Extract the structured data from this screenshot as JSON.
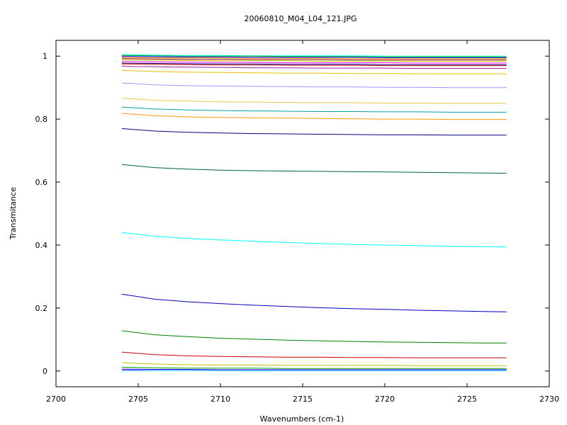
{
  "chart_data": {
    "type": "line",
    "title": "20060810_M04_L04_121.JPG",
    "xlabel": "Wavenumbers (cm-1)",
    "ylabel": "Transmitance",
    "xlim": [
      2700,
      2730
    ],
    "ylim": [
      -0.05,
      1.05
    ],
    "xticks": [
      {
        "value": 2700,
        "label": "2700"
      },
      {
        "value": 2705,
        "label": "2705"
      },
      {
        "value": 2710,
        "label": "2710"
      },
      {
        "value": 2715,
        "label": "2715"
      },
      {
        "value": 2720,
        "label": "2720"
      },
      {
        "value": 2725,
        "label": "2725"
      },
      {
        "value": 2730,
        "label": "2730"
      }
    ],
    "yticks": [
      {
        "value": 0,
        "label": "0"
      },
      {
        "value": 0.2,
        "label": "0.2"
      },
      {
        "value": 0.4,
        "label": "0.4"
      },
      {
        "value": 0.6,
        "label": "0.6"
      },
      {
        "value": 0.8,
        "label": "0.8"
      },
      {
        "value": 1,
        "label": "1"
      }
    ],
    "grid": false,
    "legend": "none",
    "x": [
      2704.0,
      2706.0,
      2708.0,
      2710.0,
      2712.0,
      2714.0,
      2716.0,
      2718.0,
      2720.0,
      2722.0,
      2724.0,
      2726.0,
      2727.4
    ],
    "series": [
      {
        "color": "#00ffff",
        "values": [
          1.005,
          1.003,
          1.002,
          1.002,
          1.001,
          1.001,
          1.001,
          1.001,
          1.0,
          1.0,
          1.0,
          1.0,
          1.0
        ]
      },
      {
        "color": "#00a000",
        "values": [
          1.002,
          1.001,
          1.0,
          1.0,
          1.0,
          0.999,
          0.999,
          0.999,
          0.998,
          0.998,
          0.998,
          0.998,
          0.998
        ]
      },
      {
        "color": "#0000ff",
        "values": [
          0.999,
          0.998,
          0.997,
          0.997,
          0.996,
          0.996,
          0.996,
          0.996,
          0.995,
          0.995,
          0.995,
          0.995,
          0.995
        ]
      },
      {
        "color": "#ff8c00",
        "values": [
          0.996,
          0.995,
          0.994,
          0.994,
          0.993,
          0.993,
          0.993,
          0.992,
          0.992,
          0.992,
          0.992,
          0.992,
          0.992
        ]
      },
      {
        "color": "#8b0000",
        "values": [
          0.992,
          0.991,
          0.99,
          0.99,
          0.989,
          0.989,
          0.989,
          0.988,
          0.988,
          0.988,
          0.988,
          0.988,
          0.988
        ]
      },
      {
        "color": "#c0c000",
        "values": [
          0.988,
          0.987,
          0.986,
          0.985,
          0.985,
          0.985,
          0.984,
          0.984,
          0.984,
          0.984,
          0.984,
          0.984,
          0.984
        ]
      },
      {
        "color": "#ff00ff",
        "values": [
          0.983,
          0.982,
          0.981,
          0.98,
          0.98,
          0.979,
          0.979,
          0.979,
          0.979,
          0.978,
          0.978,
          0.978,
          0.978
        ]
      },
      {
        "color": "#00008b",
        "values": [
          0.978,
          0.977,
          0.976,
          0.975,
          0.975,
          0.974,
          0.974,
          0.974,
          0.973,
          0.973,
          0.973,
          0.973,
          0.973
        ]
      },
      {
        "color": "#cc0000",
        "values": [
          0.975,
          0.974,
          0.973,
          0.972,
          0.972,
          0.971,
          0.971,
          0.971,
          0.97,
          0.97,
          0.97,
          0.97,
          0.97
        ]
      },
      {
        "color": "#a020a0",
        "values": [
          0.968,
          0.966,
          0.965,
          0.964,
          0.963,
          0.963,
          0.962,
          0.962,
          0.962,
          0.961,
          0.961,
          0.961,
          0.961
        ]
      },
      {
        "color": "#e6c000",
        "values": [
          0.955,
          0.951,
          0.949,
          0.948,
          0.947,
          0.946,
          0.946,
          0.945,
          0.945,
          0.944,
          0.944,
          0.944,
          0.944
        ]
      },
      {
        "color": "#9999ff",
        "values": [
          0.915,
          0.909,
          0.906,
          0.905,
          0.904,
          0.903,
          0.902,
          0.902,
          0.901,
          0.901,
          0.9,
          0.9,
          0.9
        ]
      },
      {
        "color": "#e6c84a",
        "values": [
          0.866,
          0.86,
          0.857,
          0.855,
          0.854,
          0.853,
          0.852,
          0.852,
          0.851,
          0.851,
          0.85,
          0.85,
          0.85
        ]
      },
      {
        "color": "#00a0a0",
        "values": [
          0.838,
          0.832,
          0.829,
          0.827,
          0.826,
          0.825,
          0.824,
          0.824,
          0.823,
          0.823,
          0.822,
          0.822,
          0.822
        ]
      },
      {
        "color": "#ff9900",
        "values": [
          0.818,
          0.811,
          0.807,
          0.805,
          0.804,
          0.803,
          0.802,
          0.801,
          0.8,
          0.8,
          0.799,
          0.799,
          0.799
        ]
      },
      {
        "color": "#000080",
        "values": [
          0.77,
          0.762,
          0.758,
          0.756,
          0.754,
          0.753,
          0.752,
          0.751,
          0.75,
          0.75,
          0.749,
          0.749,
          0.749
        ]
      },
      {
        "color": "#006040",
        "values": [
          0.656,
          0.646,
          0.641,
          0.638,
          0.636,
          0.635,
          0.634,
          0.633,
          0.632,
          0.631,
          0.63,
          0.629,
          0.628
        ]
      },
      {
        "color": "#00ffff",
        "values": [
          0.44,
          0.428,
          0.421,
          0.416,
          0.412,
          0.408,
          0.405,
          0.402,
          0.4,
          0.398,
          0.396,
          0.395,
          0.394
        ]
      },
      {
        "color": "#0000c0",
        "values": [
          0.244,
          0.228,
          0.22,
          0.214,
          0.209,
          0.205,
          0.201,
          0.198,
          0.196,
          0.193,
          0.191,
          0.189,
          0.188
        ]
      },
      {
        "color": "#008000",
        "values": [
          0.128,
          0.115,
          0.109,
          0.104,
          0.101,
          0.098,
          0.096,
          0.094,
          0.092,
          0.091,
          0.09,
          0.089,
          0.089
        ]
      },
      {
        "color": "#cc0000",
        "values": [
          0.06,
          0.052,
          0.048,
          0.046,
          0.045,
          0.044,
          0.044,
          0.043,
          0.043,
          0.042,
          0.042,
          0.042,
          0.042
        ]
      },
      {
        "color": "#c0c000",
        "values": [
          0.026,
          0.022,
          0.02,
          0.019,
          0.019,
          0.018,
          0.018,
          0.018,
          0.018,
          0.017,
          0.017,
          0.017,
          0.017
        ]
      },
      {
        "color": "#00a000",
        "values": [
          0.012,
          0.01,
          0.009,
          0.009,
          0.009,
          0.008,
          0.008,
          0.008,
          0.008,
          0.008,
          0.008,
          0.008,
          0.008
        ]
      },
      {
        "color": "#0000ff",
        "values": [
          0.006,
          0.005,
          0.005,
          0.004,
          0.004,
          0.004,
          0.004,
          0.004,
          0.004,
          0.004,
          0.004,
          0.004,
          0.004
        ]
      },
      {
        "color": "#ff00ff",
        "values": [
          0.003,
          0.002,
          0.002,
          0.002,
          0.002,
          0.002,
          0.002,
          0.002,
          0.002,
          0.002,
          0.002,
          0.002,
          0.002
        ]
      },
      {
        "color": "#00ffff",
        "values": [
          0.001,
          0.001,
          0.001,
          0.001,
          0.001,
          0.001,
          0.001,
          0.001,
          0.001,
          0.001,
          0.001,
          0.001,
          0.001
        ]
      }
    ]
  }
}
